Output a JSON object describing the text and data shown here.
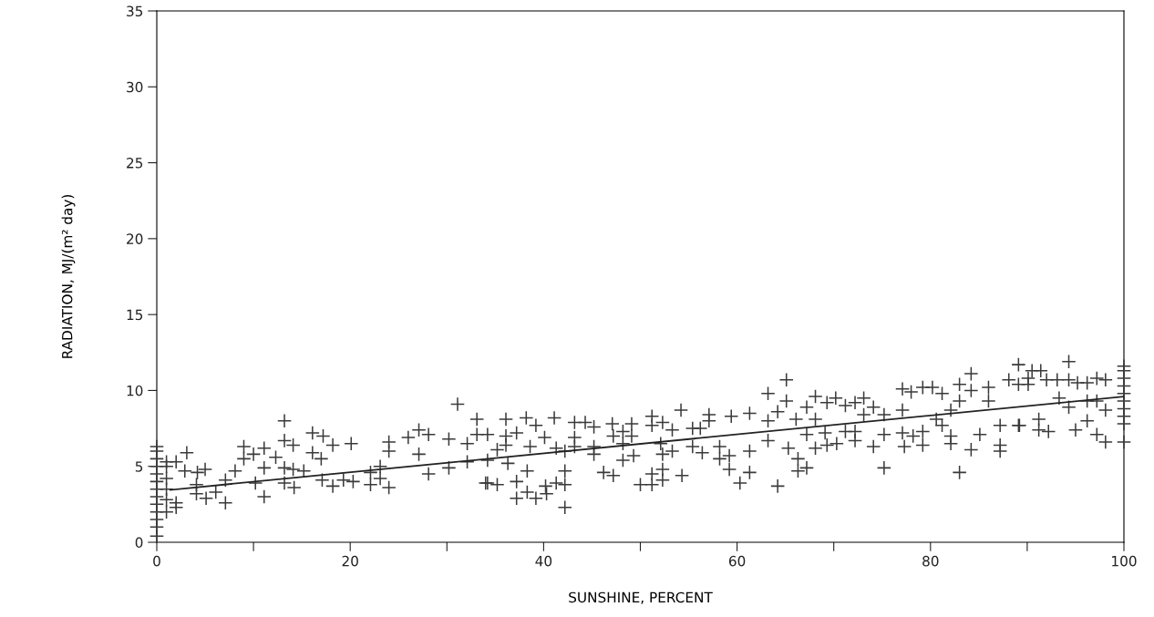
{
  "chart_data": {
    "type": "scatter",
    "xlabel": "SUNSHINE, PERCENT",
    "ylabel": "RADIATION, MJ/(m² day)",
    "xlim": [
      0,
      100
    ],
    "ylim": [
      0,
      35
    ],
    "xticks": [
      0,
      {
        "value": 10,
        "label": null
      },
      20,
      {
        "value": 30,
        "label": null
      },
      40,
      {
        "value": 50,
        "label": null
      },
      60,
      {
        "value": 70,
        "label": null
      },
      80,
      {
        "value": 90,
        "label": null
      },
      100
    ],
    "yticks": [
      0,
      5,
      10,
      15,
      20,
      25,
      30,
      35
    ],
    "grid": false,
    "legend": false,
    "series": [
      {
        "marker": "cross",
        "color": "#3a3a3a",
        "x": [
          0,
          0,
          0,
          0,
          0,
          0,
          0,
          0,
          0,
          0,
          0,
          0,
          0,
          1,
          1,
          1,
          1,
          1,
          1,
          3.1,
          2.0,
          2.9,
          4.2,
          5.0,
          4.1,
          4.1,
          5.1,
          6.1,
          7.1,
          2.0,
          2.0,
          9.0,
          9.0,
          10.0,
          11.1,
          11.1,
          8.1,
          7.1,
          10.2,
          11.1,
          12.3,
          13.2,
          13.2,
          14.1,
          16.1,
          17.2,
          16.1,
          17.0,
          18.2,
          13.2,
          14.1,
          15.2,
          13.2,
          14.2,
          17.1,
          18.2,
          19.3,
          20.3,
          20.1,
          22.1,
          22.1,
          23.1,
          24.0,
          24.0,
          24.0,
          23.1,
          26.0,
          27.1,
          28.1,
          27.1,
          28.1,
          31.1,
          30.2,
          32.1,
          33.1,
          33.1,
          30.2,
          32.1,
          34.0,
          36.1,
          38.2,
          41.1,
          39.2,
          34.2,
          36.1,
          37.2,
          35.2,
          36.1,
          34.2,
          36.3,
          40.1,
          38.6,
          41.3,
          42.2,
          43.2,
          44.3,
          45.2,
          43.2,
          43.2,
          45.2,
          45.2,
          47.1,
          47.2,
          48.2,
          49.1,
          49.1,
          48.2,
          34.2,
          35.2,
          37.2,
          38.3,
          38.3,
          37.2,
          39.2,
          40.2,
          41.3,
          42.2,
          42.2,
          42.2,
          40.3,
          46.2,
          47.2,
          48.2,
          49.3,
          50.0,
          51.2,
          52.3,
          51.2,
          52.3,
          51.2,
          51.2,
          52.3,
          53.3,
          54.2,
          52.1,
          52.3,
          53.3,
          54.3,
          55.4,
          56.2,
          55.4,
          57.1,
          57.1,
          56.4,
          58.2,
          58.2,
          59.2,
          59.2,
          59.4,
          61.3,
          61.3,
          61.3,
          60.3,
          65.1,
          63.2,
          65.1,
          64.2,
          63.2,
          63.2,
          65.3,
          66.3,
          66.3,
          67.2,
          64.2,
          66.1,
          67.2,
          68.1,
          69.3,
          70.2,
          68.1,
          67.2,
          69.1,
          68.1,
          69.3,
          70.3,
          71.2,
          72.2,
          73.1,
          71.2,
          72.2,
          72.2,
          73.1,
          74.1,
          74.1,
          75.2,
          75.2,
          75.2,
          77.1,
          77.1,
          77.1,
          77.3,
          78.0,
          79.2,
          80.2,
          79.2,
          78.2,
          79.2,
          81.2,
          81.2,
          82.1,
          83.0,
          83.0,
          84.2,
          84.2,
          84.2,
          83.0,
          82.1,
          85.1,
          86.0,
          86.0,
          87.2,
          87.2,
          88.1,
          89.1,
          87.2,
          89.1,
          89.1,
          82.1,
          80.6,
          94.3,
          90.5,
          91.4,
          90.1,
          92.0,
          93.1,
          94.3,
          95.2,
          96.2,
          97.2,
          98.1,
          93.3,
          94.3,
          96.2,
          97.2,
          95.0,
          96.2,
          97.2,
          98.1,
          98.1,
          91.2,
          91.2,
          92.2,
          90.1,
          89.2,
          100,
          100,
          100,
          100,
          100,
          100,
          100,
          100,
          100,
          100
        ],
        "values": [
          0.4,
          1.0,
          1.5,
          2.0,
          2.5,
          3.0,
          3.5,
          4.0,
          4.5,
          5.0,
          5.5,
          6.0,
          6.3,
          2.0,
          2.8,
          3.5,
          4.2,
          5.0,
          5.3,
          5.9,
          5.3,
          4.7,
          4.6,
          4.8,
          3.8,
          3.2,
          2.9,
          3.3,
          2.6,
          2.6,
          2.3,
          6.3,
          5.5,
          5.8,
          6.2,
          4.9,
          4.7,
          4.1,
          3.9,
          3.0,
          5.6,
          8.0,
          6.7,
          6.4,
          7.2,
          7.0,
          5.9,
          5.5,
          6.4,
          4.9,
          4.8,
          4.7,
          3.9,
          3.6,
          4.1,
          3.7,
          4.1,
          4.0,
          6.5,
          4.6,
          3.8,
          5.0,
          6.6,
          6.0,
          3.6,
          4.2,
          6.9,
          7.4,
          7.1,
          5.8,
          4.5,
          9.1,
          6.8,
          6.5,
          8.1,
          7.1,
          4.9,
          5.3,
          3.9,
          8.1,
          8.2,
          8.2,
          7.7,
          7.1,
          7.0,
          7.2,
          6.1,
          6.4,
          5.4,
          5.2,
          6.9,
          6.3,
          6.2,
          6.0,
          7.9,
          7.9,
          7.6,
          6.9,
          6.3,
          6.3,
          5.8,
          7.8,
          7.0,
          7.3,
          7.8,
          7.0,
          6.5,
          3.9,
          3.8,
          4.0,
          4.7,
          3.3,
          2.9,
          2.9,
          3.7,
          3.9,
          3.8,
          4.7,
          2.3,
          3.2,
          4.6,
          4.4,
          5.4,
          5.7,
          3.8,
          3.8,
          4.1,
          4.5,
          4.8,
          8.3,
          7.7,
          7.9,
          7.4,
          8.7,
          6.5,
          5.8,
          6.0,
          4.4,
          7.5,
          7.5,
          6.3,
          8.4,
          8.0,
          5.9,
          6.3,
          5.5,
          5.7,
          4.8,
          8.3,
          8.5,
          6.0,
          4.6,
          3.9,
          10.7,
          9.8,
          9.3,
          8.6,
          8.0,
          6.7,
          6.2,
          5.5,
          4.7,
          4.9,
          3.7,
          8.1,
          8.9,
          9.6,
          9.2,
          9.5,
          8.1,
          7.1,
          7.2,
          6.2,
          6.4,
          6.5,
          9.0,
          9.2,
          9.5,
          7.3,
          7.3,
          6.7,
          8.4,
          8.9,
          6.3,
          8.4,
          7.1,
          4.9,
          10.1,
          8.7,
          7.2,
          6.3,
          9.9,
          10.2,
          10.2,
          6.4,
          7.0,
          7.3,
          9.8,
          7.7,
          7.0,
          10.4,
          9.3,
          11.1,
          10.0,
          6.1,
          4.6,
          6.5,
          7.1,
          10.2,
          9.3,
          6.4,
          6.0,
          10.7,
          11.7,
          7.7,
          7.7,
          10.4,
          8.7,
          8.1,
          11.9,
          11.3,
          11.3,
          10.8,
          10.7,
          10.7,
          10.7,
          10.5,
          10.5,
          10.8,
          10.7,
          9.5,
          8.9,
          9.3,
          9.3,
          7.4,
          8.0,
          7.1,
          6.6,
          8.7,
          8.1,
          7.4,
          7.3,
          10.4,
          7.7,
          6.6,
          7.8,
          8.3,
          8.8,
          9.3,
          9.8,
          10.3,
          10.8,
          11.3,
          11.6
        ]
      },
      {
        "type": "line",
        "color": "#222222",
        "line_style": "solid",
        "marker": "none",
        "x": [
          1.4,
          100
        ],
        "values": [
          3.45,
          9.6
        ]
      }
    ]
  }
}
